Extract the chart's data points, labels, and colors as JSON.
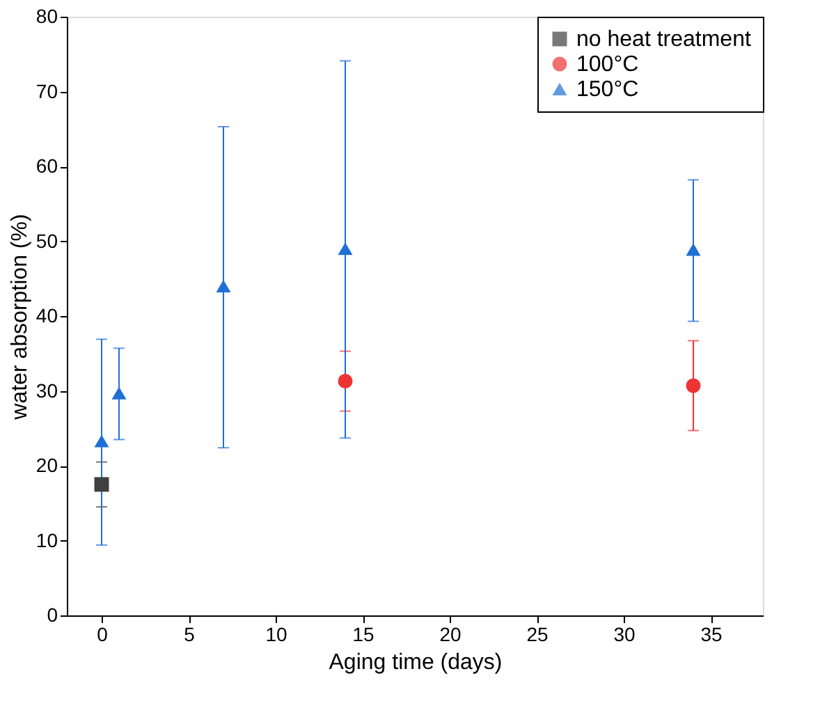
{
  "chart_data": {
    "type": "scatter",
    "xlabel": "Aging time (days)",
    "ylabel": "water absorption (%)",
    "xlim": [
      -2,
      38
    ],
    "xticks": [
      0,
      5,
      10,
      15,
      20,
      25,
      30,
      35
    ],
    "ylim": [
      0,
      80
    ],
    "yticks": [
      0,
      10,
      20,
      30,
      40,
      50,
      60,
      70,
      80
    ],
    "grid": false,
    "legend": "top right",
    "series": [
      {
        "name": "no heat treatment",
        "color": "#404040",
        "marker": "square",
        "x": [
          0
        ],
        "values": [
          17.5
        ],
        "errors": [
          [
            14.5,
            20.5
          ]
        ]
      },
      {
        "name": "100°C",
        "color": "#ee3333",
        "marker": "circle",
        "x": [
          14,
          34
        ],
        "values": [
          31.3,
          30.7
        ],
        "errors": [
          [
            27.3,
            35.3
          ],
          [
            24.7,
            36.7
          ]
        ]
      },
      {
        "name": "150°C",
        "color": "#1f6fd6",
        "marker": "triangle",
        "x": [
          0,
          1,
          7,
          14,
          34
        ],
        "values": [
          23.3,
          29.7,
          44,
          49,
          48.9
        ],
        "errors": [
          [
            9.4,
            36.9
          ],
          [
            23.5,
            35.7
          ],
          [
            22.4,
            65.3
          ],
          [
            23.7,
            74.1
          ],
          [
            39.3,
            58.2
          ]
        ]
      }
    ]
  }
}
